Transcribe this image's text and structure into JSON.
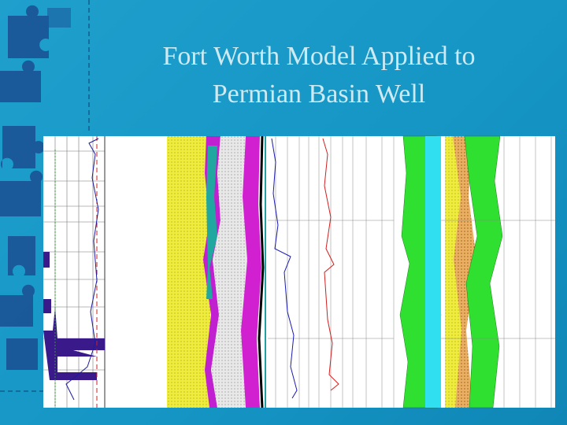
{
  "slide": {
    "title_lines": [
      "Fort Worth Model Applied to",
      "Permian Basin Well"
    ]
  }
}
